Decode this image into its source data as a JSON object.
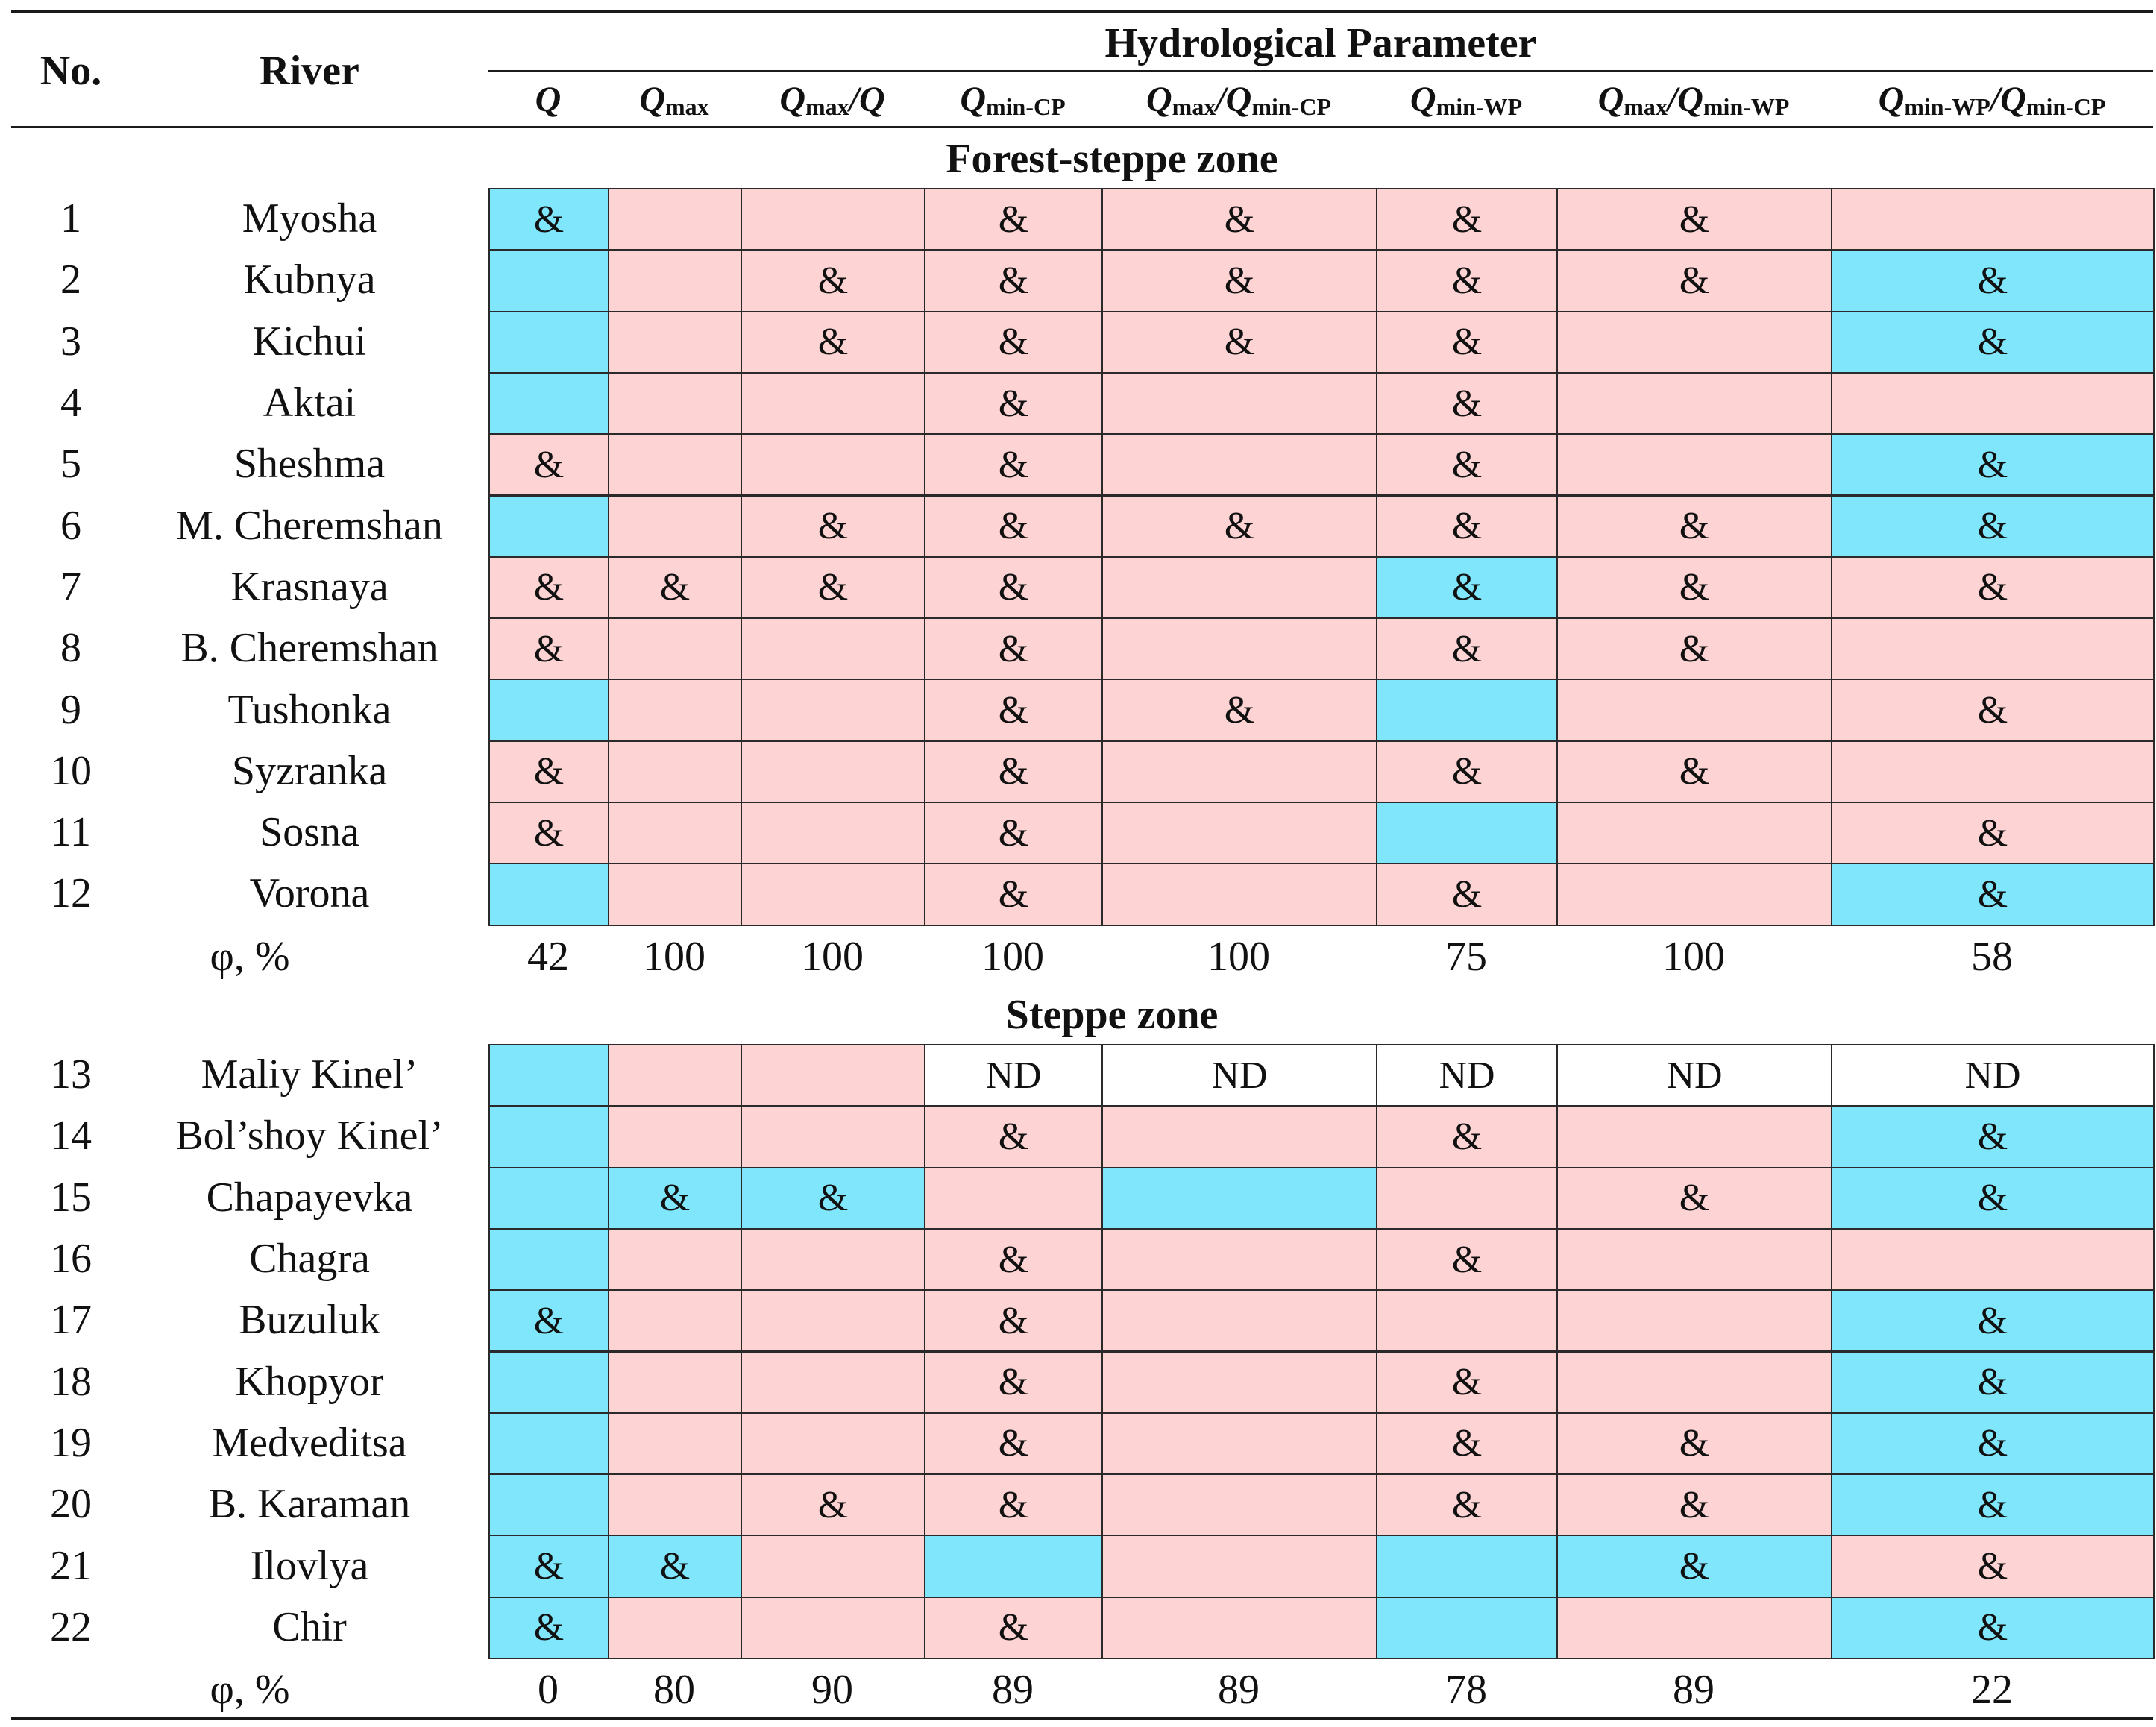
{
  "colors": {
    "blue": "#7fe6fc",
    "pink": "#fdd3d3",
    "white": "#ffffff"
  },
  "header": {
    "no": "No.",
    "river": "River",
    "group": "Hydrological Parameter",
    "columns": [
      [
        {
          "t": "Q",
          "s": false
        }
      ],
      [
        {
          "t": "Q",
          "s": false
        },
        {
          "t": "max",
          "s": true
        }
      ],
      [
        {
          "t": "Q",
          "s": false
        },
        {
          "t": "max",
          "s": true
        },
        {
          "t": "/Q",
          "s": false
        }
      ],
      [
        {
          "t": "Q",
          "s": false
        },
        {
          "t": "min-CP",
          "s": true
        }
      ],
      [
        {
          "t": "Q",
          "s": false
        },
        {
          "t": "max",
          "s": true
        },
        {
          "t": "/Q",
          "s": false
        },
        {
          "t": "min-CP",
          "s": true
        }
      ],
      [
        {
          "t": "Q",
          "s": false
        },
        {
          "t": "min-WP",
          "s": true
        }
      ],
      [
        {
          "t": "Q",
          "s": false
        },
        {
          "t": "max",
          "s": true
        },
        {
          "t": "/Q",
          "s": false
        },
        {
          "t": "min-WP",
          "s": true
        }
      ],
      [
        {
          "t": "Q",
          "s": false
        },
        {
          "t": "min-WP",
          "s": true
        },
        {
          "t": "/Q",
          "s": false
        },
        {
          "t": "min-CP",
          "s": true
        }
      ]
    ]
  },
  "sections": [
    {
      "title": "Forest-steppe zone",
      "phi_label": "φ, %",
      "phi": [
        "42",
        "100",
        "100",
        "100",
        "100",
        "75",
        "100",
        "58"
      ],
      "rows": [
        {
          "no": "1",
          "river": "Myosha",
          "cells": [
            [
              "B",
              "&"
            ],
            [
              "P",
              ""
            ],
            [
              "P",
              ""
            ],
            [
              "P",
              "&"
            ],
            [
              "P",
              "&"
            ],
            [
              "P",
              "&"
            ],
            [
              "P",
              "&"
            ],
            [
              "P",
              ""
            ]
          ]
        },
        {
          "no": "2",
          "river": "Kubnya",
          "cells": [
            [
              "B",
              ""
            ],
            [
              "P",
              ""
            ],
            [
              "P",
              "&"
            ],
            [
              "P",
              "&"
            ],
            [
              "P",
              "&"
            ],
            [
              "P",
              "&"
            ],
            [
              "P",
              "&"
            ],
            [
              "B",
              "&"
            ]
          ]
        },
        {
          "no": "3",
          "river": "Kichui",
          "cells": [
            [
              "B",
              ""
            ],
            [
              "P",
              ""
            ],
            [
              "P",
              "&"
            ],
            [
              "P",
              "&"
            ],
            [
              "P",
              "&"
            ],
            [
              "P",
              "&"
            ],
            [
              "P",
              ""
            ],
            [
              "B",
              "&"
            ]
          ]
        },
        {
          "no": "4",
          "river": "Aktai",
          "cells": [
            [
              "B",
              ""
            ],
            [
              "P",
              ""
            ],
            [
              "P",
              ""
            ],
            [
              "P",
              "&"
            ],
            [
              "P",
              ""
            ],
            [
              "P",
              "&"
            ],
            [
              "P",
              ""
            ],
            [
              "P",
              ""
            ]
          ]
        },
        {
          "no": "5",
          "river": "Sheshma",
          "cells": [
            [
              "P",
              "&"
            ],
            [
              "P",
              ""
            ],
            [
              "P",
              ""
            ],
            [
              "P",
              "&"
            ],
            [
              "P",
              ""
            ],
            [
              "P",
              "&"
            ],
            [
              "P",
              ""
            ],
            [
              "B",
              "&"
            ]
          ]
        },
        {
          "no": "6",
          "river": "M. Cheremshan",
          "cells": [
            [
              "B",
              ""
            ],
            [
              "P",
              ""
            ],
            [
              "P",
              "&"
            ],
            [
              "P",
              "&"
            ],
            [
              "P",
              "&"
            ],
            [
              "P",
              "&"
            ],
            [
              "P",
              "&"
            ],
            [
              "B",
              "&"
            ]
          ]
        },
        {
          "no": "7",
          "river": "Krasnaya",
          "cells": [
            [
              "P",
              "&"
            ],
            [
              "P",
              "&"
            ],
            [
              "P",
              "&"
            ],
            [
              "P",
              "&"
            ],
            [
              "P",
              ""
            ],
            [
              "B",
              "&"
            ],
            [
              "P",
              "&"
            ],
            [
              "P",
              "&"
            ]
          ]
        },
        {
          "no": "8",
          "river": "B. Cheremshan",
          "cells": [
            [
              "P",
              "&"
            ],
            [
              "P",
              ""
            ],
            [
              "P",
              ""
            ],
            [
              "P",
              "&"
            ],
            [
              "P",
              ""
            ],
            [
              "P",
              "&"
            ],
            [
              "P",
              "&"
            ],
            [
              "P",
              ""
            ]
          ]
        },
        {
          "no": "9",
          "river": "Tushonka",
          "cells": [
            [
              "B",
              ""
            ],
            [
              "P",
              ""
            ],
            [
              "P",
              ""
            ],
            [
              "P",
              "&"
            ],
            [
              "P",
              "&"
            ],
            [
              "B",
              ""
            ],
            [
              "P",
              ""
            ],
            [
              "P",
              "&"
            ]
          ]
        },
        {
          "no": "10",
          "river": "Syzranka",
          "cells": [
            [
              "P",
              "&"
            ],
            [
              "P",
              ""
            ],
            [
              "P",
              ""
            ],
            [
              "P",
              "&"
            ],
            [
              "P",
              ""
            ],
            [
              "P",
              "&"
            ],
            [
              "P",
              "&"
            ],
            [
              "P",
              ""
            ]
          ]
        },
        {
          "no": "11",
          "river": "Sosna",
          "cells": [
            [
              "P",
              "&"
            ],
            [
              "P",
              ""
            ],
            [
              "P",
              ""
            ],
            [
              "P",
              "&"
            ],
            [
              "P",
              ""
            ],
            [
              "B",
              ""
            ],
            [
              "P",
              ""
            ],
            [
              "P",
              "&"
            ]
          ]
        },
        {
          "no": "12",
          "river": "Vorona",
          "cells": [
            [
              "B",
              ""
            ],
            [
              "P",
              ""
            ],
            [
              "P",
              ""
            ],
            [
              "P",
              "&"
            ],
            [
              "P",
              ""
            ],
            [
              "P",
              "&"
            ],
            [
              "P",
              ""
            ],
            [
              "B",
              "&"
            ]
          ]
        }
      ]
    },
    {
      "title": "Steppe zone",
      "phi_label": "φ, %",
      "phi": [
        "0",
        "80",
        "90",
        "89",
        "89",
        "78",
        "89",
        "22"
      ],
      "rows": [
        {
          "no": "13",
          "river": "Maliy Kinel’",
          "cells": [
            [
              "B",
              ""
            ],
            [
              "P",
              ""
            ],
            [
              "P",
              ""
            ],
            [
              "W",
              "ND"
            ],
            [
              "W",
              "ND"
            ],
            [
              "W",
              "ND"
            ],
            [
              "W",
              "ND"
            ],
            [
              "W",
              "ND"
            ]
          ]
        },
        {
          "no": "14",
          "river": "Bol’shoy Kinel’",
          "cells": [
            [
              "B",
              ""
            ],
            [
              "P",
              ""
            ],
            [
              "P",
              ""
            ],
            [
              "P",
              "&"
            ],
            [
              "P",
              ""
            ],
            [
              "P",
              "&"
            ],
            [
              "P",
              ""
            ],
            [
              "B",
              "&"
            ]
          ]
        },
        {
          "no": "15",
          "river": "Chapayevka",
          "cells": [
            [
              "B",
              ""
            ],
            [
              "B",
              "&"
            ],
            [
              "B",
              "&"
            ],
            [
              "P",
              ""
            ],
            [
              "B",
              ""
            ],
            [
              "P",
              ""
            ],
            [
              "P",
              "&"
            ],
            [
              "B",
              "&"
            ]
          ]
        },
        {
          "no": "16",
          "river": "Chagra",
          "cells": [
            [
              "B",
              ""
            ],
            [
              "P",
              ""
            ],
            [
              "P",
              ""
            ],
            [
              "P",
              "&"
            ],
            [
              "P",
              ""
            ],
            [
              "P",
              "&"
            ],
            [
              "P",
              ""
            ],
            [
              "P",
              ""
            ]
          ]
        },
        {
          "no": "17",
          "river": "Buzuluk",
          "cells": [
            [
              "B",
              "&"
            ],
            [
              "P",
              ""
            ],
            [
              "P",
              ""
            ],
            [
              "P",
              "&"
            ],
            [
              "P",
              ""
            ],
            [
              "P",
              ""
            ],
            [
              "P",
              ""
            ],
            [
              "B",
              "&"
            ]
          ]
        },
        {
          "no": "18",
          "river": "Khopyor",
          "cells": [
            [
              "B",
              ""
            ],
            [
              "P",
              ""
            ],
            [
              "P",
              ""
            ],
            [
              "P",
              "&"
            ],
            [
              "P",
              ""
            ],
            [
              "P",
              "&"
            ],
            [
              "P",
              ""
            ],
            [
              "B",
              "&"
            ]
          ]
        },
        {
          "no": "19",
          "river": "Medveditsa",
          "cells": [
            [
              "B",
              ""
            ],
            [
              "P",
              ""
            ],
            [
              "P",
              ""
            ],
            [
              "P",
              "&"
            ],
            [
              "P",
              ""
            ],
            [
              "P",
              "&"
            ],
            [
              "P",
              "&"
            ],
            [
              "B",
              "&"
            ]
          ]
        },
        {
          "no": "20",
          "river": "B. Karaman",
          "cells": [
            [
              "B",
              ""
            ],
            [
              "P",
              ""
            ],
            [
              "P",
              "&"
            ],
            [
              "P",
              "&"
            ],
            [
              "P",
              ""
            ],
            [
              "P",
              "&"
            ],
            [
              "P",
              "&"
            ],
            [
              "B",
              "&"
            ]
          ]
        },
        {
          "no": "21",
          "river": "Ilovlya",
          "cells": [
            [
              "B",
              "&"
            ],
            [
              "B",
              "&"
            ],
            [
              "P",
              ""
            ],
            [
              "B",
              ""
            ],
            [
              "P",
              ""
            ],
            [
              "B",
              ""
            ],
            [
              "B",
              "&"
            ],
            [
              "P",
              "&"
            ]
          ]
        },
        {
          "no": "22",
          "river": "Chir",
          "cells": [
            [
              "B",
              "&"
            ],
            [
              "P",
              ""
            ],
            [
              "P",
              ""
            ],
            [
              "P",
              "&"
            ],
            [
              "P",
              ""
            ],
            [
              "B",
              ""
            ],
            [
              "P",
              ""
            ],
            [
              "B",
              "&"
            ]
          ]
        }
      ]
    }
  ]
}
